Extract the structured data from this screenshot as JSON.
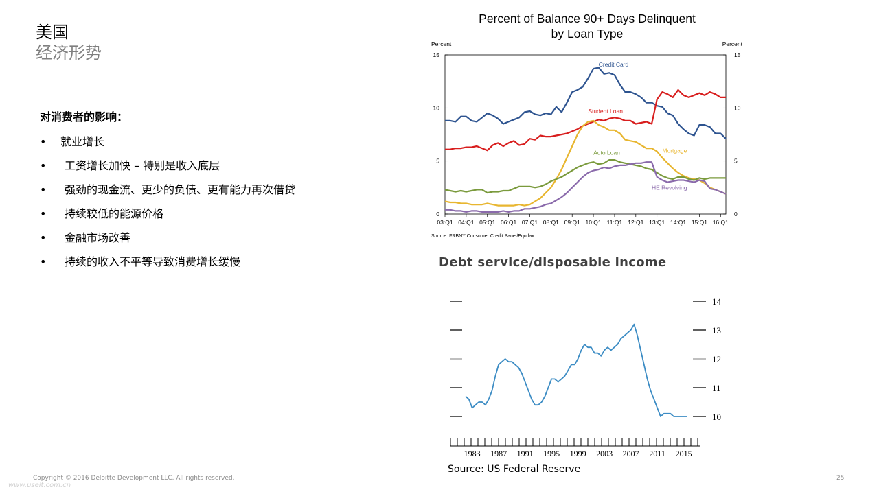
{
  "slide": {
    "title_line1": "美国",
    "title_line2": "经济形势",
    "impact_heading": "对消费者的影响：",
    "bullets": [
      {
        "text": "就业增长"
      },
      {
        "text": "工资增长加快 – 特别是收入底层"
      },
      {
        "text": "强劲的现金流、更少的负债、更有能力再次借贷"
      },
      {
        "text": "持续较低的能源价格"
      },
      {
        "text": "金融市场改善"
      },
      {
        "text": "持续的收入不平等导致消费增长缓慢"
      }
    ],
    "bullet_symbol": "•",
    "copyright": "Copyright © 2016 Deloitte Development LLC. All rights reserved.",
    "page_number": "25",
    "watermark": "www.useit.com.cn"
  },
  "chart_data": [
    {
      "type": "line",
      "title": "Percent of Balance 90+ Days Delinquent",
      "subtitle": "by Loan Type",
      "ylabel_left": "Percent",
      "ylabel_right": "Percent",
      "ylim": [
        0,
        15
      ],
      "yticks": [
        "0",
        "5",
        "10",
        "15"
      ],
      "xlim": [
        2003.0,
        2016.25
      ],
      "xticks": [
        "03:Q1",
        "04:Q1",
        "05:Q1",
        "06:Q1",
        "07:Q1",
        "08:Q1",
        "09:Q1",
        "10:Q1",
        "11:Q1",
        "12:Q1",
        "13:Q1",
        "14:Q1",
        "15:Q1",
        "16:Q1"
      ],
      "source": "Source: FRBNY Consumer Credit Panel/Equifax",
      "series": [
        {
          "name": "Credit Card",
          "color": "#2e5490",
          "x": [
            2003.0,
            2003.25,
            2003.5,
            2003.75,
            2004.0,
            2004.25,
            2004.5,
            2004.75,
            2005.0,
            2005.25,
            2005.5,
            2005.75,
            2006.0,
            2006.25,
            2006.5,
            2006.75,
            2007.0,
            2007.25,
            2007.5,
            2007.75,
            2008.0,
            2008.25,
            2008.5,
            2008.75,
            2009.0,
            2009.25,
            2009.5,
            2009.75,
            2010.0,
            2010.25,
            2010.5,
            2010.75,
            2011.0,
            2011.25,
            2011.5,
            2011.75,
            2012.0,
            2012.25,
            2012.5,
            2012.75,
            2013.0,
            2013.25,
            2013.5,
            2013.75,
            2014.0,
            2014.25,
            2014.5,
            2014.75,
            2015.0,
            2015.25,
            2015.5,
            2015.75,
            2016.0,
            2016.25
          ],
          "y": [
            8.8,
            8.8,
            8.7,
            9.2,
            9.2,
            8.8,
            8.7,
            9.1,
            9.5,
            9.3,
            9.0,
            8.5,
            8.7,
            8.9,
            9.1,
            9.6,
            9.7,
            9.4,
            9.3,
            9.5,
            9.4,
            10.1,
            9.6,
            10.5,
            11.5,
            11.7,
            12.0,
            12.8,
            13.7,
            13.8,
            13.2,
            13.3,
            13.1,
            12.2,
            11.5,
            11.5,
            11.3,
            11.0,
            10.5,
            10.5,
            10.2,
            10.1,
            9.5,
            9.3,
            8.5,
            8.0,
            7.6,
            7.4,
            8.4,
            8.4,
            8.2,
            7.6,
            7.6,
            7.1
          ]
        },
        {
          "name": "Student Loan",
          "color": "#d81e1e",
          "x": [
            2003.0,
            2003.25,
            2003.5,
            2003.75,
            2004.0,
            2004.25,
            2004.5,
            2004.75,
            2005.0,
            2005.25,
            2005.5,
            2005.75,
            2006.0,
            2006.25,
            2006.5,
            2006.75,
            2007.0,
            2007.25,
            2007.5,
            2007.75,
            2008.0,
            2008.25,
            2008.5,
            2008.75,
            2009.0,
            2009.25,
            2009.5,
            2009.75,
            2010.0,
            2010.25,
            2010.5,
            2010.75,
            2011.0,
            2011.25,
            2011.5,
            2011.75,
            2012.0,
            2012.25,
            2012.5,
            2012.75,
            2013.0,
            2013.25,
            2013.5,
            2013.75,
            2014.0,
            2014.25,
            2014.5,
            2014.75,
            2015.0,
            2015.25,
            2015.5,
            2015.75,
            2016.0,
            2016.25
          ],
          "y": [
            6.1,
            6.1,
            6.2,
            6.2,
            6.3,
            6.3,
            6.4,
            6.2,
            6.0,
            6.5,
            6.7,
            6.4,
            6.7,
            6.9,
            6.5,
            6.6,
            7.1,
            7.0,
            7.4,
            7.3,
            7.3,
            7.4,
            7.5,
            7.6,
            7.8,
            8.0,
            8.3,
            8.5,
            8.7,
            8.9,
            8.8,
            9.0,
            9.1,
            9.0,
            8.8,
            8.8,
            8.5,
            8.6,
            8.7,
            8.5,
            10.8,
            11.5,
            11.3,
            11.0,
            11.7,
            11.2,
            11.0,
            11.2,
            11.4,
            11.2,
            11.5,
            11.3,
            11.0,
            11.0
          ]
        },
        {
          "name": "Mortgage",
          "color": "#e8b630",
          "x": [
            2003.0,
            2003.25,
            2003.5,
            2003.75,
            2004.0,
            2004.25,
            2004.5,
            2004.75,
            2005.0,
            2005.25,
            2005.5,
            2005.75,
            2006.0,
            2006.25,
            2006.5,
            2006.75,
            2007.0,
            2007.25,
            2007.5,
            2007.75,
            2008.0,
            2008.25,
            2008.5,
            2008.75,
            2009.0,
            2009.25,
            2009.5,
            2009.75,
            2010.0,
            2010.25,
            2010.5,
            2010.75,
            2011.0,
            2011.25,
            2011.5,
            2011.75,
            2012.0,
            2012.25,
            2012.5,
            2012.75,
            2013.0,
            2013.25,
            2013.5,
            2013.75,
            2014.0,
            2014.25,
            2014.5,
            2014.75,
            2015.0,
            2015.25,
            2015.5,
            2015.75,
            2016.0,
            2016.25
          ],
          "y": [
            1.2,
            1.1,
            1.1,
            1.0,
            1.0,
            0.9,
            0.9,
            0.9,
            1.0,
            0.9,
            0.8,
            0.8,
            0.8,
            0.8,
            0.9,
            0.8,
            0.9,
            1.2,
            1.5,
            2.0,
            2.5,
            3.3,
            4.2,
            5.3,
            6.4,
            7.5,
            8.3,
            8.7,
            8.8,
            8.4,
            8.2,
            7.9,
            7.9,
            7.6,
            7.0,
            6.9,
            6.8,
            6.5,
            6.2,
            6.2,
            5.9,
            5.3,
            4.8,
            4.3,
            3.9,
            3.6,
            3.4,
            3.3,
            3.2,
            2.9,
            2.5,
            2.3,
            2.1,
            1.9
          ]
        },
        {
          "name": "Auto Loan",
          "color": "#7a9a3c",
          "x": [
            2003.0,
            2003.25,
            2003.5,
            2003.75,
            2004.0,
            2004.25,
            2004.5,
            2004.75,
            2005.0,
            2005.25,
            2005.5,
            2005.75,
            2006.0,
            2006.25,
            2006.5,
            2006.75,
            2007.0,
            2007.25,
            2007.5,
            2007.75,
            2008.0,
            2008.25,
            2008.5,
            2008.75,
            2009.0,
            2009.25,
            2009.5,
            2009.75,
            2010.0,
            2010.25,
            2010.5,
            2010.75,
            2011.0,
            2011.25,
            2011.5,
            2011.75,
            2012.0,
            2012.25,
            2012.5,
            2012.75,
            2013.0,
            2013.25,
            2013.5,
            2013.75,
            2014.0,
            2014.25,
            2014.5,
            2014.75,
            2015.0,
            2015.25,
            2015.5,
            2015.75,
            2016.0,
            2016.25
          ],
          "y": [
            2.3,
            2.2,
            2.1,
            2.2,
            2.1,
            2.2,
            2.3,
            2.3,
            2.0,
            2.1,
            2.1,
            2.2,
            2.2,
            2.4,
            2.6,
            2.6,
            2.6,
            2.5,
            2.6,
            2.8,
            3.1,
            3.3,
            3.5,
            3.8,
            4.1,
            4.4,
            4.6,
            4.8,
            4.9,
            4.7,
            4.8,
            5.1,
            5.1,
            4.9,
            4.8,
            4.7,
            4.6,
            4.5,
            4.3,
            4.2,
            3.9,
            3.6,
            3.4,
            3.3,
            3.5,
            3.5,
            3.3,
            3.2,
            3.4,
            3.3,
            3.4,
            3.4,
            3.4,
            3.4
          ]
        },
        {
          "name": "HE Revolving",
          "color": "#8a6aab",
          "x": [
            2003.0,
            2003.25,
            2003.5,
            2003.75,
            2004.0,
            2004.25,
            2004.5,
            2004.75,
            2005.0,
            2005.25,
            2005.5,
            2005.75,
            2006.0,
            2006.25,
            2006.5,
            2006.75,
            2007.0,
            2007.25,
            2007.5,
            2007.75,
            2008.0,
            2008.25,
            2008.5,
            2008.75,
            2009.0,
            2009.25,
            2009.5,
            2009.75,
            2010.0,
            2010.25,
            2010.5,
            2010.75,
            2011.0,
            2011.25,
            2011.5,
            2011.75,
            2012.0,
            2012.25,
            2012.5,
            2012.75,
            2013.0,
            2013.25,
            2013.5,
            2013.75,
            2014.0,
            2014.25,
            2014.5,
            2014.75,
            2015.0,
            2015.25,
            2015.5,
            2015.75,
            2016.0,
            2016.25
          ],
          "y": [
            0.4,
            0.4,
            0.3,
            0.3,
            0.2,
            0.3,
            0.3,
            0.2,
            0.2,
            0.2,
            0.2,
            0.3,
            0.2,
            0.3,
            0.3,
            0.5,
            0.5,
            0.6,
            0.7,
            0.9,
            1.0,
            1.3,
            1.6,
            2.0,
            2.5,
            3.0,
            3.5,
            3.9,
            4.1,
            4.2,
            4.4,
            4.3,
            4.5,
            4.6,
            4.6,
            4.7,
            4.8,
            4.8,
            4.9,
            4.9,
            3.5,
            3.2,
            3.0,
            3.1,
            3.2,
            3.2,
            3.1,
            3.0,
            3.2,
            3.1,
            2.4,
            2.3,
            2.1,
            1.9
          ]
        }
      ],
      "annotations": [
        {
          "text": "Credit Card",
          "x": 2010.25,
          "y": 13.9,
          "series": 0
        },
        {
          "text": "Student Loan",
          "x": 2009.75,
          "y": 9.5,
          "series": 1
        },
        {
          "text": "Mortgage",
          "x": 2013.25,
          "y": 5.8,
          "series": 2
        },
        {
          "text": "Auto Loan",
          "x": 2010.0,
          "y": 5.6,
          "series": 3
        },
        {
          "text": "HE Revolving",
          "x": 2012.75,
          "y": 2.3,
          "series": 4
        }
      ]
    },
    {
      "type": "line",
      "title": "Debt service/disposable income",
      "source": "Source: US Federal Reserve",
      "ylim": [
        9.5,
        14.3
      ],
      "yticks": [
        "10",
        "11",
        "12",
        "13",
        "14"
      ],
      "xlim": [
        1980,
        2017
      ],
      "xticks": [
        "1983",
        "1987",
        "1991",
        "1995",
        "1999",
        "2003",
        "2007",
        "2011",
        "2015"
      ],
      "series": [
        {
          "name": "",
          "color": "#3c8cc4",
          "x": [
            1982.0,
            1982.5,
            1983.0,
            1983.5,
            1984.0,
            1984.5,
            1985.0,
            1985.5,
            1986.0,
            1986.5,
            1987.0,
            1987.5,
            1988.0,
            1988.5,
            1989.0,
            1989.5,
            1990.0,
            1990.5,
            1991.0,
            1991.5,
            1992.0,
            1992.5,
            1993.0,
            1993.5,
            1994.0,
            1994.5,
            1995.0,
            1995.5,
            1996.0,
            1996.5,
            1997.0,
            1997.5,
            1998.0,
            1998.5,
            1999.0,
            1999.5,
            2000.0,
            2000.5,
            2001.0,
            2001.5,
            2002.0,
            2002.5,
            2003.0,
            2003.5,
            2004.0,
            2004.5,
            2005.0,
            2005.5,
            2006.0,
            2006.5,
            2007.0,
            2007.5,
            2008.0,
            2008.5,
            2009.0,
            2009.5,
            2010.0,
            2010.5,
            2011.0,
            2011.5,
            2012.0,
            2012.5,
            2013.0,
            2013.5,
            2014.0,
            2014.5,
            2015.0,
            2015.5
          ],
          "y": [
            10.7,
            10.6,
            10.3,
            10.4,
            10.5,
            10.5,
            10.4,
            10.6,
            10.9,
            11.4,
            11.8,
            11.9,
            12.0,
            11.9,
            11.9,
            11.8,
            11.7,
            11.5,
            11.2,
            10.9,
            10.6,
            10.4,
            10.4,
            10.5,
            10.7,
            11.0,
            11.3,
            11.3,
            11.2,
            11.3,
            11.4,
            11.6,
            11.8,
            11.8,
            12.0,
            12.3,
            12.5,
            12.4,
            12.4,
            12.2,
            12.2,
            12.1,
            12.3,
            12.4,
            12.3,
            12.4,
            12.5,
            12.7,
            12.8,
            12.9,
            13.0,
            13.2,
            12.8,
            12.3,
            11.8,
            11.3,
            10.9,
            10.6,
            10.3,
            10.0,
            10.1,
            10.1,
            10.1,
            10.0,
            10.0,
            10.0,
            10.0,
            10.0
          ]
        }
      ]
    }
  ]
}
